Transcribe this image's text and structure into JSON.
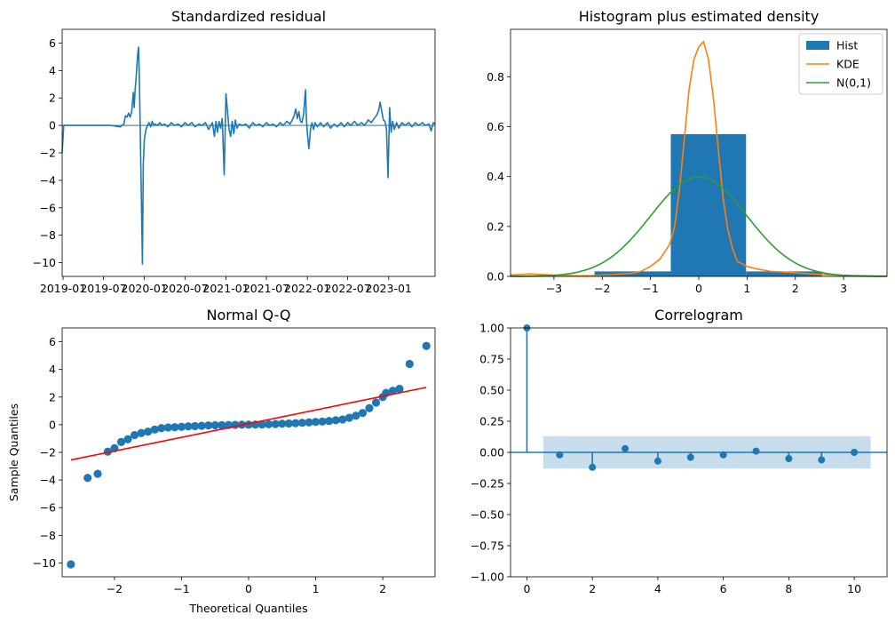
{
  "colors": {
    "blue": "#1f77b4",
    "orange": "#ff7f0e",
    "green": "#2ca02c",
    "red": "#ff0000",
    "band": "#1f77b4"
  },
  "chart_data": [
    {
      "id": "resid",
      "type": "line",
      "title": "Standardized residual",
      "xlabel": "",
      "ylabel": "",
      "xlim": [
        "2018-12-28",
        "2023-07-28"
      ],
      "ylim": [
        -11,
        7
      ],
      "yticks": [
        -10,
        -8,
        -6,
        -4,
        -2,
        0,
        2,
        4,
        6
      ],
      "xticks": [
        {
          "date": "2019-01-01",
          "label": "2019-01"
        },
        {
          "date": "2019-07-01",
          "label": "2019-07"
        },
        {
          "date": "2020-01-01",
          "label": "2020-01"
        },
        {
          "date": "2020-07-01",
          "label": "2020-07"
        },
        {
          "date": "2021-01-01",
          "label": "2021-01"
        },
        {
          "date": "2021-07-01",
          "label": "2021-07"
        },
        {
          "date": "2022-01-01",
          "label": "2022-01"
        },
        {
          "date": "2022-07-01",
          "label": "2022-07"
        },
        {
          "date": "2023-01-01",
          "label": "2023-01"
        }
      ],
      "hline": 0,
      "series": [
        {
          "points": [
            [
              "2018-12-28",
              -2.0
            ],
            [
              "2019-01-04",
              0.0
            ],
            [
              "2019-02-01",
              0.0
            ],
            [
              "2019-04-01",
              0.0
            ],
            [
              "2019-06-01",
              0.0
            ],
            [
              "2019-08-01",
              0.0
            ],
            [
              "2019-09-15",
              -0.1
            ],
            [
              "2019-10-01",
              0.1
            ],
            [
              "2019-10-08",
              0.7
            ],
            [
              "2019-10-15",
              0.6
            ],
            [
              "2019-10-22",
              0.9
            ],
            [
              "2019-10-29",
              0.6
            ],
            [
              "2019-11-05",
              1.0
            ],
            [
              "2019-11-12",
              2.4
            ],
            [
              "2019-11-16",
              1.3
            ],
            [
              "2019-11-20",
              2.5
            ],
            [
              "2019-11-24",
              3.3
            ],
            [
              "2019-11-28",
              4.2
            ],
            [
              "2019-12-02",
              5.2
            ],
            [
              "2019-12-06",
              5.7
            ],
            [
              "2019-12-10",
              3.0
            ],
            [
              "2019-12-14",
              -1.0
            ],
            [
              "2019-12-18",
              -4.8
            ],
            [
              "2019-12-23",
              -10.1
            ],
            [
              "2019-12-27",
              -2.8
            ],
            [
              "2020-01-01",
              -1.0
            ],
            [
              "2020-01-08",
              -0.3
            ],
            [
              "2020-01-15",
              0.0
            ],
            [
              "2020-01-22",
              0.2
            ],
            [
              "2020-01-29",
              -0.1
            ],
            [
              "2020-02-05",
              0.3
            ],
            [
              "2020-02-12",
              0.0
            ],
            [
              "2020-02-19",
              0.1
            ],
            [
              "2020-03-01",
              0.0
            ],
            [
              "2020-03-10",
              0.2
            ],
            [
              "2020-03-20",
              0.0
            ],
            [
              "2020-04-01",
              0.1
            ],
            [
              "2020-04-15",
              -0.1
            ],
            [
              "2020-05-01",
              0.2
            ],
            [
              "2020-05-15",
              0.0
            ],
            [
              "2020-06-01",
              0.1
            ],
            [
              "2020-06-15",
              -0.1
            ],
            [
              "2020-07-01",
              0.2
            ],
            [
              "2020-07-15",
              0.0
            ],
            [
              "2020-08-01",
              0.2
            ],
            [
              "2020-08-15",
              -0.1
            ],
            [
              "2020-09-01",
              0.1
            ],
            [
              "2020-09-15",
              0.0
            ],
            [
              "2020-10-01",
              0.2
            ],
            [
              "2020-10-15",
              -0.3
            ],
            [
              "2020-11-01",
              0.2
            ],
            [
              "2020-11-10",
              -0.8
            ],
            [
              "2020-11-17",
              0.3
            ],
            [
              "2020-11-24",
              -0.5
            ],
            [
              "2020-12-01",
              0.3
            ],
            [
              "2020-12-08",
              -0.2
            ],
            [
              "2020-12-15",
              0.5
            ],
            [
              "2020-12-24",
              -3.6
            ],
            [
              "2021-01-01",
              2.3
            ],
            [
              "2021-01-08",
              1.0
            ],
            [
              "2021-01-15",
              -0.3
            ],
            [
              "2021-01-22",
              -0.8
            ],
            [
              "2021-01-29",
              0.3
            ],
            [
              "2021-02-05",
              -0.6
            ],
            [
              "2021-02-12",
              0.4
            ],
            [
              "2021-02-19",
              -0.2
            ],
            [
              "2021-03-01",
              0.1
            ],
            [
              "2021-03-15",
              0.0
            ],
            [
              "2021-04-01",
              0.1
            ],
            [
              "2021-04-15",
              -0.2
            ],
            [
              "2021-05-01",
              0.2
            ],
            [
              "2021-05-15",
              0.0
            ],
            [
              "2021-06-01",
              0.1
            ],
            [
              "2021-06-15",
              -0.1
            ],
            [
              "2021-07-01",
              0.2
            ],
            [
              "2021-07-15",
              0.0
            ],
            [
              "2021-08-01",
              0.1
            ],
            [
              "2021-08-15",
              -0.1
            ],
            [
              "2021-09-01",
              0.2
            ],
            [
              "2021-09-15",
              0.0
            ],
            [
              "2021-10-01",
              0.3
            ],
            [
              "2021-10-15",
              0.1
            ],
            [
              "2021-11-01",
              0.6
            ],
            [
              "2021-11-10",
              1.2
            ],
            [
              "2021-11-17",
              0.5
            ],
            [
              "2021-11-24",
              1.0
            ],
            [
              "2021-12-01",
              0.3
            ],
            [
              "2021-12-08",
              0.2
            ],
            [
              "2021-12-15",
              0.8
            ],
            [
              "2021-12-24",
              2.6
            ],
            [
              "2021-12-28",
              0.5
            ],
            [
              "2022-01-01",
              -0.6
            ],
            [
              "2022-01-08",
              -1.7
            ],
            [
              "2022-01-15",
              -0.3
            ],
            [
              "2022-01-22",
              0.2
            ],
            [
              "2022-01-29",
              -0.3
            ],
            [
              "2022-02-05",
              0.2
            ],
            [
              "2022-02-15",
              -0.1
            ],
            [
              "2022-03-01",
              0.2
            ],
            [
              "2022-03-15",
              -0.1
            ],
            [
              "2022-04-01",
              0.2
            ],
            [
              "2022-04-15",
              -0.2
            ],
            [
              "2022-05-01",
              0.1
            ],
            [
              "2022-05-15",
              -0.1
            ],
            [
              "2022-06-01",
              0.2
            ],
            [
              "2022-06-15",
              -0.1
            ],
            [
              "2022-07-01",
              0.2
            ],
            [
              "2022-07-15",
              0.0
            ],
            [
              "2022-08-01",
              0.3
            ],
            [
              "2022-08-15",
              0.0
            ],
            [
              "2022-09-01",
              0.2
            ],
            [
              "2022-09-15",
              0.0
            ],
            [
              "2022-10-01",
              0.4
            ],
            [
              "2022-10-15",
              0.2
            ],
            [
              "2022-11-01",
              0.6
            ],
            [
              "2022-11-10",
              0.8
            ],
            [
              "2022-11-17",
              1.1
            ],
            [
              "2022-11-24",
              1.7
            ],
            [
              "2022-12-01",
              1.0
            ],
            [
              "2022-12-08",
              0.4
            ],
            [
              "2022-12-15",
              0.3
            ],
            [
              "2022-12-22",
              -0.3
            ],
            [
              "2022-12-29",
              -3.8
            ],
            [
              "2023-01-05",
              1.3
            ],
            [
              "2023-01-12",
              -0.5
            ],
            [
              "2023-01-19",
              0.3
            ],
            [
              "2023-01-26",
              -0.3
            ],
            [
              "2023-02-05",
              0.2
            ],
            [
              "2023-02-15",
              -0.2
            ],
            [
              "2023-03-01",
              0.2
            ],
            [
              "2023-03-15",
              0.0
            ],
            [
              "2023-04-01",
              0.2
            ],
            [
              "2023-04-15",
              -0.1
            ],
            [
              "2023-05-01",
              0.2
            ],
            [
              "2023-05-15",
              0.0
            ],
            [
              "2023-06-01",
              0.2
            ],
            [
              "2023-06-15",
              0.0
            ],
            [
              "2023-07-01",
              0.1
            ],
            [
              "2023-07-10",
              -0.4
            ],
            [
              "2023-07-20",
              0.2
            ],
            [
              "2023-07-28",
              0.1
            ]
          ]
        }
      ]
    },
    {
      "id": "hist",
      "type": "bar",
      "title": "Histogram plus estimated density",
      "xlabel": "",
      "ylabel": "",
      "xlim": [
        -3.9,
        3.9
      ],
      "ylim": [
        0,
        0.99
      ],
      "xticks": [
        -3,
        -2,
        -1,
        0,
        1,
        2,
        3
      ],
      "yticks": [
        0.0,
        0.2,
        0.4,
        0.6,
        0.8
      ],
      "legend": {
        "position": "top-right"
      },
      "bars": [
        {
          "x0": -2.16,
          "x1": -0.58,
          "value": 0.02
        },
        {
          "x0": -0.58,
          "x1": 0.98,
          "value": 0.57
        },
        {
          "x0": 0.98,
          "x1": 2.55,
          "value": 0.02
        }
      ],
      "series": [
        {
          "name": "Hist",
          "kind": "bar"
        },
        {
          "name": "KDE",
          "kind": "line",
          "x": [
            -3.9,
            -3.5,
            -3.0,
            -2.5,
            -2.2,
            -2.0,
            -1.8,
            -1.6,
            -1.4,
            -1.2,
            -1.0,
            -0.8,
            -0.6,
            -0.5,
            -0.4,
            -0.3,
            -0.2,
            -0.1,
            0.0,
            0.1,
            0.2,
            0.3,
            0.4,
            0.5,
            0.6,
            0.7,
            0.8,
            1.0,
            1.2,
            1.5,
            2.0,
            2.5,
            3.0,
            3.5,
            3.9
          ],
          "y": [
            0.005,
            0.01,
            0.005,
            0.002,
            0.003,
            0.005,
            0.007,
            0.01,
            0.012,
            0.02,
            0.04,
            0.07,
            0.13,
            0.2,
            0.35,
            0.55,
            0.75,
            0.87,
            0.92,
            0.94,
            0.87,
            0.72,
            0.52,
            0.32,
            0.19,
            0.11,
            0.06,
            0.04,
            0.03,
            0.02,
            0.015,
            0.008,
            0.004,
            0.002,
            0.001
          ]
        },
        {
          "name": "N(0,1)",
          "kind": "line",
          "function": "standard-normal-pdf"
        }
      ]
    },
    {
      "id": "qq",
      "type": "scatter",
      "title": "Normal Q-Q",
      "xlabel": "Theoretical Quantiles",
      "ylabel": "Sample Quantiles",
      "xlim": [
        -2.78,
        2.78
      ],
      "ylim": [
        -11,
        7
      ],
      "xticks": [
        -2,
        -1,
        0,
        1,
        2
      ],
      "yticks": [
        -10,
        -8,
        -6,
        -4,
        -2,
        0,
        2,
        4,
        6
      ],
      "reference_line": {
        "x": [
          -2.65,
          2.65
        ],
        "y": [
          -2.55,
          2.7
        ]
      },
      "points": [
        [
          -2.65,
          -10.1
        ],
        [
          -2.4,
          -3.85
        ],
        [
          -2.25,
          -3.55
        ],
        [
          -2.1,
          -1.95
        ],
        [
          -2.0,
          -1.7
        ],
        [
          -1.9,
          -1.25
        ],
        [
          -1.8,
          -1.05
        ],
        [
          -1.7,
          -0.75
        ],
        [
          -1.6,
          -0.6
        ],
        [
          -1.5,
          -0.5
        ],
        [
          -1.4,
          -0.35
        ],
        [
          -1.3,
          -0.25
        ],
        [
          -1.2,
          -0.2
        ],
        [
          -1.1,
          -0.18
        ],
        [
          -1.0,
          -0.15
        ],
        [
          -0.9,
          -0.12
        ],
        [
          -0.8,
          -0.1
        ],
        [
          -0.7,
          -0.08
        ],
        [
          -0.6,
          -0.05
        ],
        [
          -0.5,
          -0.04
        ],
        [
          -0.4,
          -0.03
        ],
        [
          -0.3,
          -0.02
        ],
        [
          -0.2,
          -0.01
        ],
        [
          -0.1,
          0.0
        ],
        [
          0.0,
          0.0
        ],
        [
          0.1,
          0.01
        ],
        [
          0.2,
          0.02
        ],
        [
          0.3,
          0.03
        ],
        [
          0.4,
          0.05
        ],
        [
          0.5,
          0.07
        ],
        [
          0.6,
          0.09
        ],
        [
          0.7,
          0.11
        ],
        [
          0.8,
          0.14
        ],
        [
          0.9,
          0.17
        ],
        [
          1.0,
          0.2
        ],
        [
          1.1,
          0.23
        ],
        [
          1.2,
          0.27
        ],
        [
          1.3,
          0.32
        ],
        [
          1.4,
          0.38
        ],
        [
          1.5,
          0.5
        ],
        [
          1.6,
          0.65
        ],
        [
          1.7,
          0.85
        ],
        [
          1.8,
          1.2
        ],
        [
          1.9,
          1.6
        ],
        [
          2.0,
          2.0
        ],
        [
          2.05,
          2.3
        ],
        [
          2.15,
          2.45
        ],
        [
          2.25,
          2.6
        ],
        [
          2.4,
          4.4
        ],
        [
          2.65,
          5.7
        ]
      ]
    },
    {
      "id": "acf",
      "type": "bar",
      "title": "Correlogram",
      "xlabel": "",
      "ylabel": "",
      "xlim": [
        -0.5,
        11
      ],
      "ylim": [
        -1.0,
        1.0
      ],
      "xticks": [
        0,
        2,
        4,
        6,
        8,
        10
      ],
      "yticks": [
        -1.0,
        -0.75,
        -0.5,
        -0.25,
        0.0,
        0.25,
        0.5,
        0.75,
        1.0
      ],
      "confidence_band": {
        "x0": 0.5,
        "x1": 10.5,
        "lower": -0.13,
        "upper": 0.13
      },
      "lags": [
        0,
        1,
        2,
        3,
        4,
        5,
        6,
        7,
        8,
        9,
        10
      ],
      "values": [
        1.0,
        -0.02,
        -0.12,
        0.03,
        -0.07,
        -0.04,
        -0.02,
        0.01,
        -0.05,
        -0.06,
        0.0
      ]
    }
  ]
}
